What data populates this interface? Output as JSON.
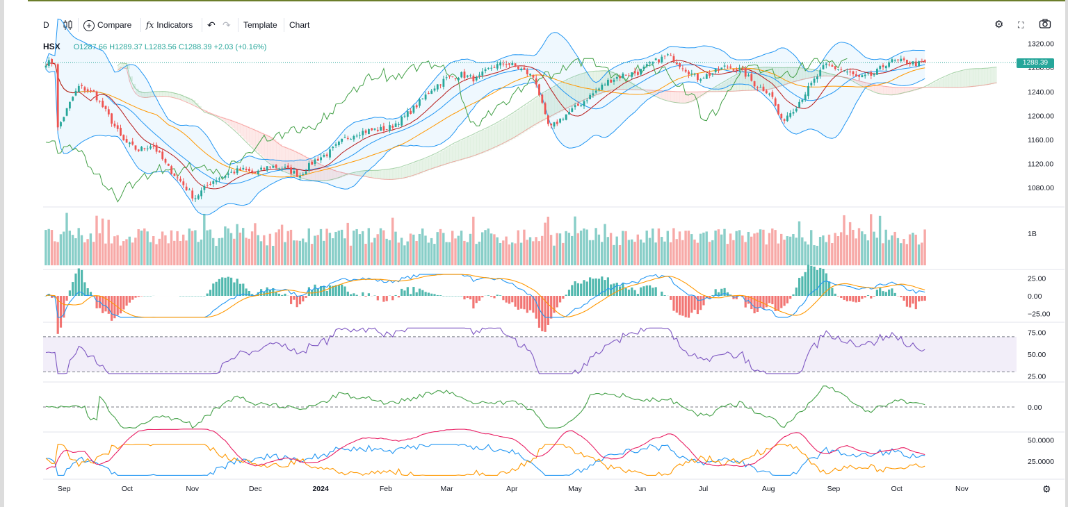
{
  "toolbar": {
    "interval": "D",
    "compare": "Compare",
    "indicators": "Indicators",
    "template": "Template",
    "chart": "Chart"
  },
  "legend": {
    "symbol": "HSX",
    "ohlc": "O1287.66 H1289.37 L1283.56 C1288.39 +2.03 (+0.16%)"
  },
  "last_price": "1288.39",
  "colors": {
    "up": "#26a69a",
    "down": "#ef5350",
    "bollinger": "#2196f3",
    "ma_orange": "#ff9800",
    "ma_red": "#b71c1c",
    "lagging_green": "#43a047",
    "rsi": "#7e57c2",
    "dmi_plus": "#2196f3",
    "dmi_minus": "#ff9800",
    "adx": "#e91e63"
  },
  "chart_data": [
    {
      "type": "candlestick",
      "panel": "price",
      "ylim": [
        1050,
        1330
      ],
      "y_ticks": [
        "1320.00",
        "1280.00",
        "1240.00",
        "1200.00",
        "1160.00",
        "1120.00",
        "1080.00"
      ],
      "x_ticks": [
        "Sep",
        "Oct",
        "Nov",
        "Dec",
        "2024",
        "Feb",
        "Mar",
        "Apr",
        "May",
        "Jun",
        "Jul",
        "Aug",
        "Sep",
        "Oct",
        "Nov"
      ],
      "last": 1288.39,
      "close_path": [
        [
          "2023-08-29",
          1178
        ],
        [
          "2023-09-05",
          1230
        ],
        [
          "2023-09-08",
          1248
        ],
        [
          "2023-09-15",
          1238
        ],
        [
          "2023-09-22",
          1200
        ],
        [
          "2023-09-29",
          1158
        ],
        [
          "2023-10-06",
          1142
        ],
        [
          "2023-10-13",
          1152
        ],
        [
          "2023-10-20",
          1115
        ],
        [
          "2023-10-27",
          1088
        ],
        [
          "2023-11-02",
          1062
        ],
        [
          "2023-11-10",
          1090
        ],
        [
          "2023-11-17",
          1102
        ],
        [
          "2023-11-24",
          1110
        ],
        [
          "2023-12-01",
          1104
        ],
        [
          "2023-12-08",
          1116
        ],
        [
          "2023-12-15",
          1112
        ],
        [
          "2023-12-22",
          1100
        ],
        [
          "2023-12-29",
          1125
        ],
        [
          "2024-01-05",
          1138
        ],
        [
          "2024-01-12",
          1160
        ],
        [
          "2024-01-19",
          1172
        ],
        [
          "2024-01-26",
          1176
        ],
        [
          "2024-02-02",
          1178
        ],
        [
          "2024-02-09",
          1195
        ],
        [
          "2024-02-16",
          1218
        ],
        [
          "2024-02-23",
          1245
        ],
        [
          "2024-03-01",
          1262
        ],
        [
          "2024-03-08",
          1268
        ],
        [
          "2024-03-15",
          1260
        ],
        [
          "2024-03-22",
          1280
        ],
        [
          "2024-03-29",
          1288
        ],
        [
          "2024-04-05",
          1278
        ],
        [
          "2024-04-12",
          1262
        ],
        [
          "2024-04-17",
          1195
        ],
        [
          "2024-04-19",
          1178
        ],
        [
          "2024-04-26",
          1200
        ],
        [
          "2024-05-03",
          1218
        ],
        [
          "2024-05-10",
          1238
        ],
        [
          "2024-05-17",
          1258
        ],
        [
          "2024-05-24",
          1268
        ],
        [
          "2024-05-31",
          1272
        ],
        [
          "2024-06-07",
          1288
        ],
        [
          "2024-06-14",
          1300
        ],
        [
          "2024-06-21",
          1282
        ],
        [
          "2024-06-28",
          1262
        ],
        [
          "2024-07-05",
          1270
        ],
        [
          "2024-07-12",
          1282
        ],
        [
          "2024-07-19",
          1276
        ],
        [
          "2024-07-26",
          1250
        ],
        [
          "2024-08-02",
          1238
        ],
        [
          "2024-08-07",
          1190
        ],
        [
          "2024-08-14",
          1215
        ],
        [
          "2024-08-21",
          1250
        ],
        [
          "2024-08-28",
          1284
        ],
        [
          "2024-09-06",
          1275
        ],
        [
          "2024-09-13",
          1262
        ],
        [
          "2024-09-20",
          1268
        ],
        [
          "2024-09-27",
          1290
        ],
        [
          "2024-10-04",
          1290
        ],
        [
          "2024-10-11",
          1286
        ],
        [
          "2024-10-15",
          1288
        ]
      ]
    },
    {
      "type": "bar",
      "panel": "volume",
      "y_ticks": [
        "1B"
      ]
    },
    {
      "type": "line",
      "panel": "macd",
      "y_ticks": [
        "25.00",
        "0.00",
        "−25.00"
      ],
      "ylim": [
        -35,
        35
      ]
    },
    {
      "type": "line",
      "panel": "rsi",
      "y_ticks": [
        "75.00",
        "50.00",
        "25.00"
      ],
      "ylim": [
        20,
        85
      ],
      "band": [
        30,
        70
      ]
    },
    {
      "type": "line",
      "panel": "momentum",
      "y_ticks": [
        "0.00"
      ],
      "ylim": [
        -45,
        45
      ]
    },
    {
      "type": "line",
      "panel": "dmi",
      "y_ticks": [
        "50.0000",
        "25.0000"
      ],
      "ylim": [
        5,
        58
      ]
    }
  ]
}
